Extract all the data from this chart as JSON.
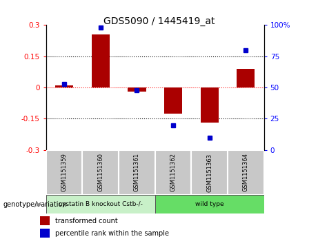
{
  "title": "GDS5090 / 1445419_at",
  "samples": [
    "GSM1151359",
    "GSM1151360",
    "GSM1151361",
    "GSM1151362",
    "GSM1151363",
    "GSM1151364"
  ],
  "bar_values": [
    0.01,
    0.255,
    -0.02,
    -0.125,
    -0.17,
    0.09
  ],
  "dot_values": [
    53,
    98,
    48,
    20,
    10,
    80
  ],
  "bar_color": "#aa0000",
  "dot_color": "#0000cc",
  "ylim_left": [
    -0.3,
    0.3
  ],
  "ylim_right": [
    0,
    100
  ],
  "yticks_left": [
    -0.3,
    -0.15,
    0.0,
    0.15,
    0.3
  ],
  "yticks_right": [
    0,
    25,
    50,
    75,
    100
  ],
  "ytick_labels_right": [
    "0",
    "25",
    "50",
    "75",
    "100%"
  ],
  "group_labels": [
    "cystatin B knockout Cstb-/-",
    "wild type"
  ],
  "genotype_label": "genotype/variation",
  "legend_bar_label": "transformed count",
  "legend_dot_label": "percentile rank within the sample",
  "bar_width": 0.5,
  "cell_bg_color": "#c8c8c8",
  "group1_color": "#c8f0c8",
  "group2_color": "#66dd66"
}
